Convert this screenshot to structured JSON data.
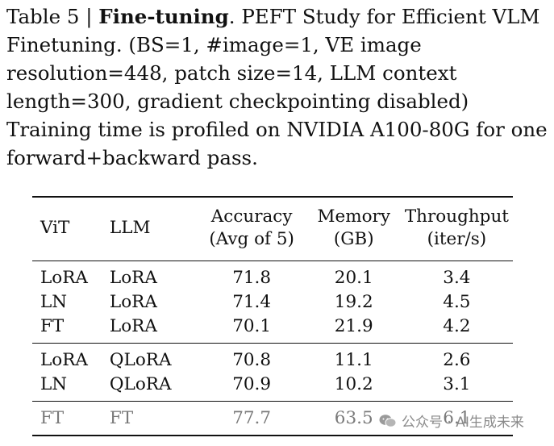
{
  "caption": {
    "label": "Table 5 |",
    "title": "Fine-tuning",
    "text": ". PEFT Study for Efficient VLM Finetuning. (BS=1, #image=1, VE image resolution=448, patch size=14, LLM context length=300, gradient checkpointing disabled) Training time is profiled on NVIDIA A100-80G for one forward+backward pass."
  },
  "table": {
    "headers": {
      "vit": "ViT",
      "llm": "LLM",
      "accuracy_line1": "Accuracy",
      "accuracy_line2": "(Avg of 5)",
      "memory_line1": "Memory",
      "memory_line2": "(GB)",
      "throughput_line1": "Throughput",
      "throughput_line2": "(iter/s)"
    },
    "groups": [
      [
        {
          "vit": "LoRA",
          "llm": "LoRA",
          "accuracy": "71.8",
          "memory": "20.1",
          "throughput": "3.4"
        },
        {
          "vit": "LN",
          "llm": "LoRA",
          "accuracy": "71.4",
          "memory": "19.2",
          "throughput": "4.5"
        },
        {
          "vit": "FT",
          "llm": "LoRA",
          "accuracy": "70.1",
          "memory": "21.9",
          "throughput": "4.2"
        }
      ],
      [
        {
          "vit": "LoRA",
          "llm": "QLoRA",
          "accuracy": "70.8",
          "memory": "11.1",
          "throughput": "2.6"
        },
        {
          "vit": "LN",
          "llm": "QLoRA",
          "accuracy": "70.9",
          "memory": "10.2",
          "throughput": "3.1"
        }
      ],
      [
        {
          "vit": "FT",
          "llm": "FT",
          "accuracy": "77.7",
          "memory": "63.5",
          "throughput": "6.1"
        }
      ]
    ]
  },
  "watermark": {
    "text": "公众号 · AI生成未来"
  }
}
